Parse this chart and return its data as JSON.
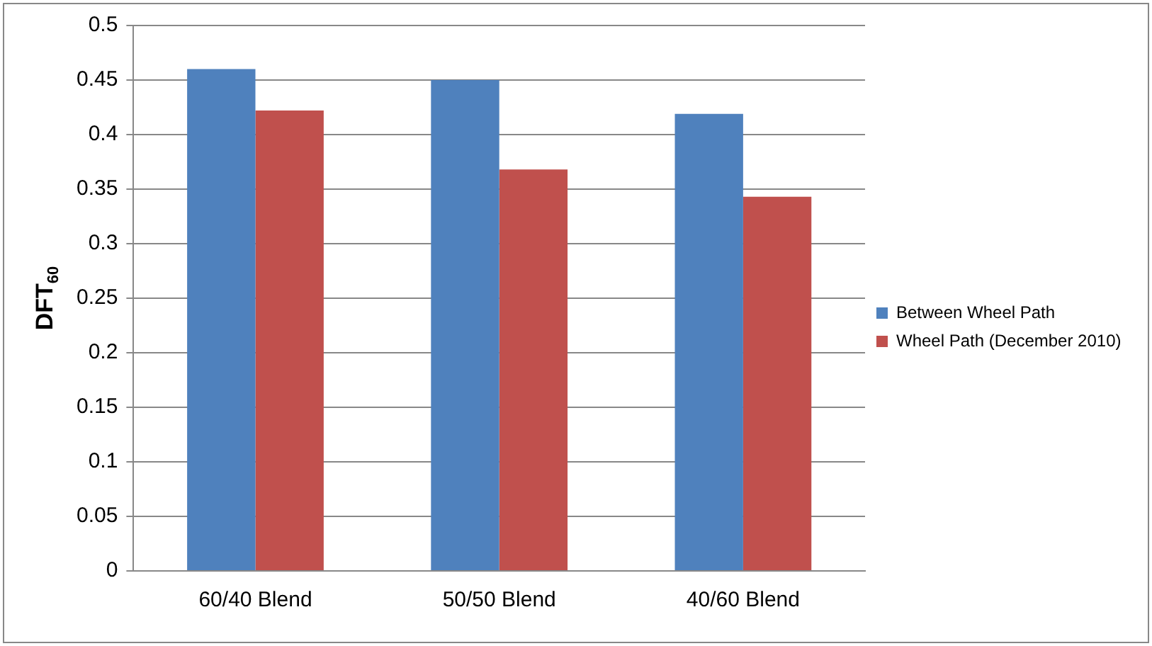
{
  "chart_data": {
    "type": "bar",
    "ylabel": "DFT$_{60}$",
    "categories": [
      "60/40 Blend",
      "50/50 Blend",
      "40/60 Blend"
    ],
    "series": [
      {
        "name": "Between Wheel Path",
        "color": "#4f81bd",
        "values": [
          0.46,
          0.45,
          0.419
        ]
      },
      {
        "name": "Wheel Path (December 2010)",
        "color": "#c0504d",
        "values": [
          0.422,
          0.368,
          0.343
        ]
      }
    ],
    "ylim": [
      0,
      0.5
    ],
    "yticks": [
      0,
      0.05,
      0.1,
      0.15,
      0.2,
      0.25,
      0.3,
      0.35,
      0.4,
      0.45,
      0.5
    ],
    "grid": "y",
    "legend": "right"
  }
}
